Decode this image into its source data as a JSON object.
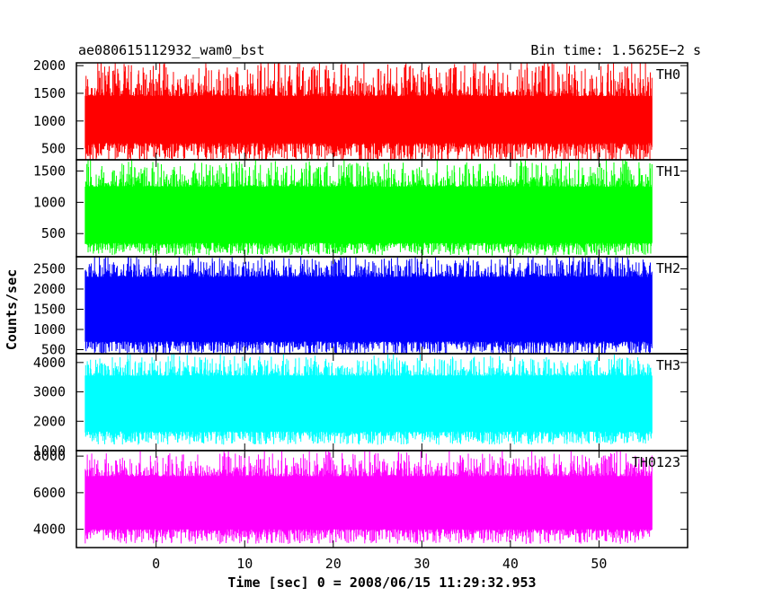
{
  "chart_data": {
    "type": "line",
    "title_left": "ae080615112932_wam0_bst",
    "title_right": "Bin time: 1.5625E−2 s",
    "xlabel": "Time [sec] 0 = 2008/06/15 11:29:32.953",
    "ylabel": "Counts/sec",
    "xlim": [
      -9,
      60
    ],
    "x_range_data": [
      -8,
      56
    ],
    "xticks": [
      0,
      10,
      20,
      30,
      40,
      50
    ],
    "grid": false,
    "panels": [
      {
        "name": "TH0",
        "color": "#ff0000",
        "ylim": [
          300,
          2050
        ],
        "yticks": [
          500,
          1000,
          1500,
          2000
        ],
        "band": [
          250,
          2050
        ],
        "mean": 950,
        "lower_core": 600,
        "upper_core": 1450
      },
      {
        "name": "TH1",
        "color": "#00ff00",
        "ylim": [
          130,
          1680
        ],
        "yticks": [
          500,
          1000,
          1500
        ],
        "band": [
          150,
          1650
        ],
        "mean": 700,
        "lower_core": 350,
        "upper_core": 1250
      },
      {
        "name": "TH2",
        "color": "#0000ff",
        "ylim": [
          400,
          2800
        ],
        "yticks": [
          500,
          1000,
          1500,
          2000,
          2500
        ],
        "band": [
          350,
          2800
        ],
        "mean": 1450,
        "lower_core": 700,
        "upper_core": 2300
      },
      {
        "name": "TH3",
        "color": "#00ffff",
        "ylim": [
          1000,
          4300
        ],
        "yticks": [
          1000,
          2000,
          3000,
          4000
        ],
        "band": [
          1200,
          4200
        ],
        "mean": 2450,
        "lower_core": 1650,
        "upper_core": 3550
      },
      {
        "name": "TH0123",
        "color": "#ff00ff",
        "ylim": [
          3000,
          8300
        ],
        "yticks": [
          4000,
          6000,
          8000
        ],
        "band": [
          3200,
          8200
        ],
        "mean": 5300,
        "lower_core": 4000,
        "upper_core": 6900
      }
    ]
  }
}
